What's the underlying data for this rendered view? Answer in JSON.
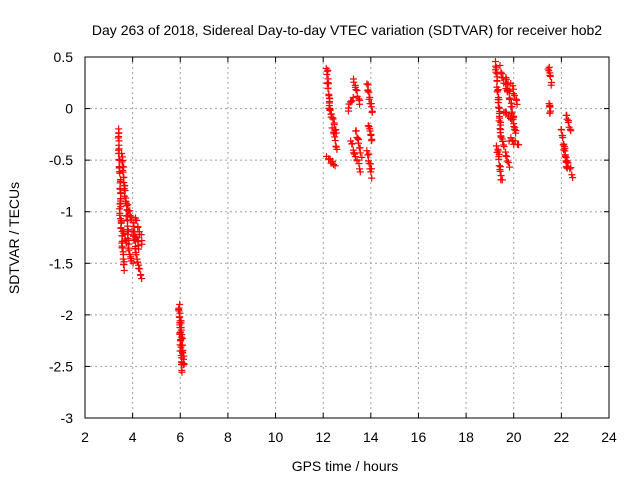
{
  "chart_data": {
    "type": "scatter",
    "title": "Day 263 of 2018, Sidereal Day-to-day VTEC variation (SDTVAR) for receiver hob2",
    "xlabel": "GPS time / hours",
    "ylabel": "SDTVAR / TECUs",
    "xlim": [
      2,
      24
    ],
    "ylim": [
      -3,
      0.5
    ],
    "xticks": [
      2,
      4,
      6,
      8,
      10,
      12,
      14,
      16,
      18,
      20,
      22,
      24
    ],
    "yticks": [
      0.5,
      0,
      -0.5,
      -1,
      -1.5,
      -2,
      -2.5,
      -3
    ],
    "xtick_labels": [
      "2",
      "4",
      "6",
      "8",
      "10",
      "12",
      "14",
      "16",
      "18",
      "20",
      "22",
      "24"
    ],
    "ytick_labels": [
      "0.5",
      "0",
      "-0.5",
      "-1",
      "-1.5",
      "-2",
      "-2.5",
      "-3"
    ],
    "grid": true,
    "marker": "+",
    "color": "#ff0000",
    "series": [
      {
        "name": "SDTVAR",
        "segments": [
          {
            "x0": 3.4,
            "x1": 3.5,
            "y0": -0.2,
            "y1": -0.95
          },
          {
            "x0": 3.45,
            "x1": 3.65,
            "y0": -0.95,
            "y1": -1.55
          },
          {
            "x0": 3.55,
            "x1": 3.85,
            "y0": -0.45,
            "y1": -1.3
          },
          {
            "x0": 3.6,
            "x1": 4.0,
            "y0": -1.2,
            "y1": -1.5
          },
          {
            "x0": 3.8,
            "x1": 4.25,
            "y0": -0.95,
            "y1": -1.35
          },
          {
            "x0": 4.0,
            "x1": 4.35,
            "y0": -1.2,
            "y1": -1.65
          },
          {
            "x0": 4.1,
            "x1": 4.4,
            "y0": -1.05,
            "y1": -1.3
          },
          {
            "x0": 5.95,
            "x1": 6.05,
            "y0": -1.9,
            "y1": -2.55
          },
          {
            "x0": 6.0,
            "x1": 6.15,
            "y0": -2.05,
            "y1": -2.5
          },
          {
            "x0": 12.15,
            "x1": 12.3,
            "y0": 0.4,
            "y1": -0.05
          },
          {
            "x0": 12.15,
            "x1": 12.5,
            "y0": -0.45,
            "y1": -0.55
          },
          {
            "x0": 12.25,
            "x1": 12.55,
            "y0": 0.05,
            "y1": -0.25
          },
          {
            "x0": 12.4,
            "x1": 12.6,
            "y0": -0.2,
            "y1": -0.4
          },
          {
            "x0": 13.05,
            "x1": 13.25,
            "y0": 0.0,
            "y1": 0.1
          },
          {
            "x0": 13.15,
            "x1": 13.55,
            "y0": -0.3,
            "y1": -0.6
          },
          {
            "x0": 13.25,
            "x1": 13.55,
            "y0": 0.3,
            "y1": 0.05
          },
          {
            "x0": 13.35,
            "x1": 13.6,
            "y0": -0.2,
            "y1": -0.45
          },
          {
            "x0": 13.85,
            "x1": 14.05,
            "y0": 0.25,
            "y1": -0.05
          },
          {
            "x0": 13.85,
            "x1": 14.05,
            "y0": -0.4,
            "y1": -0.65
          },
          {
            "x0": 13.9,
            "x1": 14.05,
            "y0": -0.15,
            "y1": -0.3
          },
          {
            "x0": 19.25,
            "x1": 19.45,
            "y0": 0.45,
            "y1": -0.25
          },
          {
            "x0": 19.3,
            "x1": 19.5,
            "y0": -0.35,
            "y1": -0.7
          },
          {
            "x0": 19.4,
            "x1": 19.75,
            "y0": 0.4,
            "y1": 0.15
          },
          {
            "x0": 19.45,
            "x1": 19.8,
            "y0": -0.25,
            "y1": -0.55
          },
          {
            "x0": 19.6,
            "x1": 19.95,
            "y0": -0.05,
            "y1": -0.1
          },
          {
            "x0": 19.7,
            "x1": 20.1,
            "y0": 0.3,
            "y1": -0.25
          },
          {
            "x0": 19.8,
            "x1": 20.2,
            "y0": -0.3,
            "y1": -0.35
          },
          {
            "x0": 19.9,
            "x1": 20.15,
            "y0": 0.25,
            "y1": 0.05
          },
          {
            "x0": 21.45,
            "x1": 21.6,
            "y0": 0.4,
            "y1": 0.25
          },
          {
            "x0": 21.5,
            "x1": 21.55,
            "y0": 0.05,
            "y1": -0.05
          },
          {
            "x0": 22.0,
            "x1": 22.25,
            "y0": -0.2,
            "y1": -0.6
          },
          {
            "x0": 22.1,
            "x1": 22.45,
            "y0": -0.4,
            "y1": -0.65
          },
          {
            "x0": 22.2,
            "x1": 22.4,
            "y0": -0.05,
            "y1": -0.2
          }
        ]
      }
    ]
  }
}
